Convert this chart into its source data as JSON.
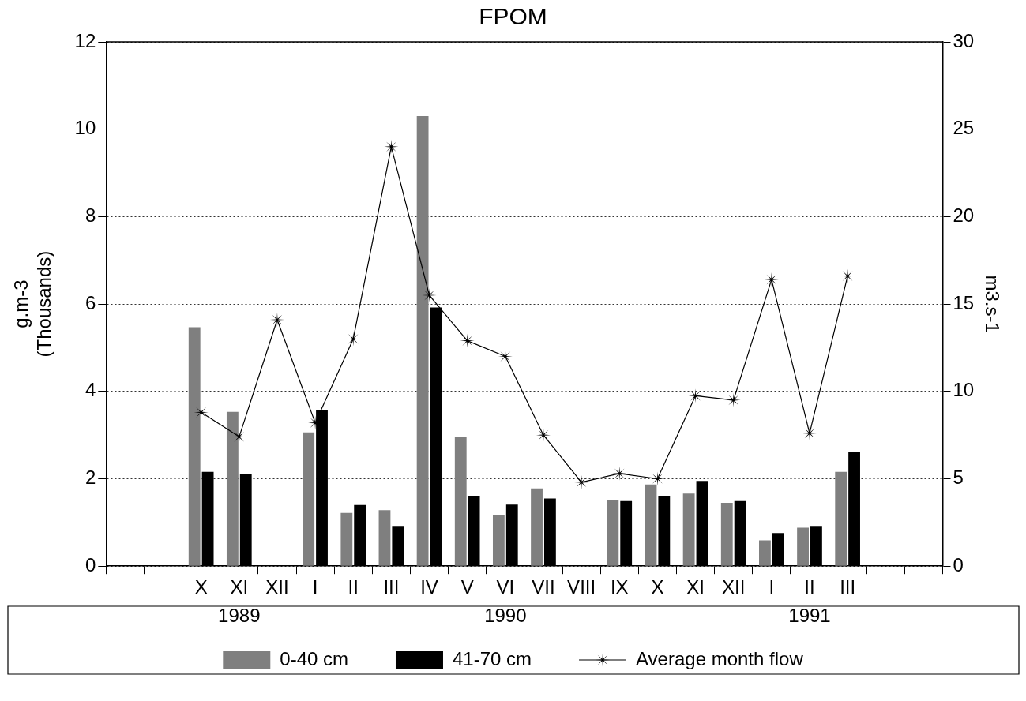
{
  "chart_data": {
    "type": "bar",
    "title": "FPOM",
    "ylabel": "g.m-3\n(Thousands)",
    "y2label": "m3.s-1",
    "categories": [
      null,
      null,
      "X",
      "XI",
      "XII",
      "I",
      "II",
      "III",
      "IV",
      "V",
      "VI",
      "VII",
      "VIII",
      "IX",
      "X",
      "XI",
      "XII",
      "I",
      "II",
      "III",
      null,
      null
    ],
    "series": [
      {
        "name": "0-40 cm",
        "color": "#7f7f7f",
        "values": [
          null,
          null,
          5.47,
          3.53,
          null,
          3.06,
          1.22,
          1.28,
          10.3,
          2.96,
          1.18,
          1.78,
          null,
          1.51,
          1.87,
          1.66,
          1.45,
          0.59,
          0.88,
          2.16,
          null,
          null
        ]
      },
      {
        "name": "41-70 cm",
        "color": "#000000",
        "values": [
          null,
          null,
          2.16,
          2.1,
          null,
          3.57,
          1.4,
          0.92,
          5.92,
          1.61,
          1.41,
          1.55,
          null,
          1.49,
          1.61,
          1.95,
          1.49,
          0.76,
          0.92,
          2.62,
          null,
          null
        ]
      },
      {
        "name": "Average month flow",
        "type": "line",
        "axis": "y2",
        "color": "#000000",
        "marker": "star",
        "line_style": "solid",
        "values": [
          null,
          null,
          8.8,
          7.4,
          14.1,
          8.2,
          13.0,
          24.0,
          15.5,
          12.9,
          12.0,
          7.5,
          4.8,
          5.3,
          5.0,
          9.75,
          9.5,
          16.4,
          7.6,
          16.6,
          null,
          null
        ]
      }
    ],
    "ylim": [
      0,
      12
    ],
    "yticks": [
      0,
      2,
      4,
      6,
      8,
      10,
      12
    ],
    "y2lim": [
      0,
      30
    ],
    "y2ticks": [
      0,
      5,
      10,
      15,
      20,
      25,
      30
    ],
    "grid": "y",
    "legend": "bottom",
    "annotations": [
      "1989",
      "1990",
      "1991"
    ]
  }
}
